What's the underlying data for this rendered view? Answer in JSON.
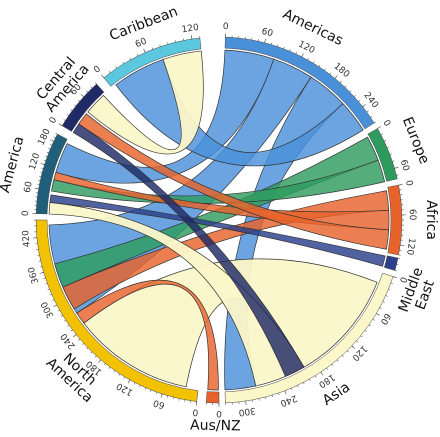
{
  "regions": [
    {
      "id": "americas",
      "name": "Americas",
      "color": "#4a90d9",
      "label_lines": [
        "Americas"
      ],
      "ticks": [
        "0",
        "60",
        "120",
        "180",
        "240"
      ]
    },
    {
      "id": "europe",
      "name": "Europe",
      "color": "#2e9b5e",
      "label_lines": [
        "Europe"
      ],
      "ticks": [
        "0",
        "60"
      ]
    },
    {
      "id": "africa",
      "name": "Africa",
      "color": "#e8632b",
      "label_lines": [
        "Africa"
      ],
      "ticks": [
        "0",
        "60",
        "120"
      ]
    },
    {
      "id": "middle_east",
      "name": "Middle East",
      "color": "#2b3f8c",
      "label_lines": [
        "Middle",
        "East"
      ],
      "ticks": []
    },
    {
      "id": "asia",
      "name": "Asia",
      "color": "#fbf7c9",
      "label_lines": [
        "Asia"
      ],
      "ticks": [
        "0",
        "60",
        "120",
        "180",
        "240",
        "300"
      ]
    },
    {
      "id": "aus_nz",
      "name": "Aus/NZ",
      "color": "#e8632b",
      "label_lines": [
        "Aus/NZ"
      ],
      "ticks": [
        "0"
      ]
    },
    {
      "id": "north_america",
      "name": "North America",
      "color": "#f2c200",
      "label_lines": [
        "North",
        "America"
      ],
      "ticks": [
        "0",
        "60",
        "120",
        "180",
        "240",
        "300",
        "360",
        "420"
      ]
    },
    {
      "id": "south_america",
      "name": "South America",
      "color": "#1f5f7a",
      "label_lines": [
        "America"
      ],
      "ticks": [
        "0",
        "60",
        "120",
        "180"
      ]
    },
    {
      "id": "central_america",
      "name": "Central America",
      "color": "#1f2a66",
      "label_lines": [
        "Central",
        "America"
      ],
      "ticks": [
        "0",
        "60"
      ]
    },
    {
      "id": "caribbean",
      "name": "Caribbean",
      "color": "#5bc8e0",
      "label_lines": [
        "Caribbean"
      ],
      "ticks": [
        "0",
        "60",
        "120"
      ]
    }
  ]
}
